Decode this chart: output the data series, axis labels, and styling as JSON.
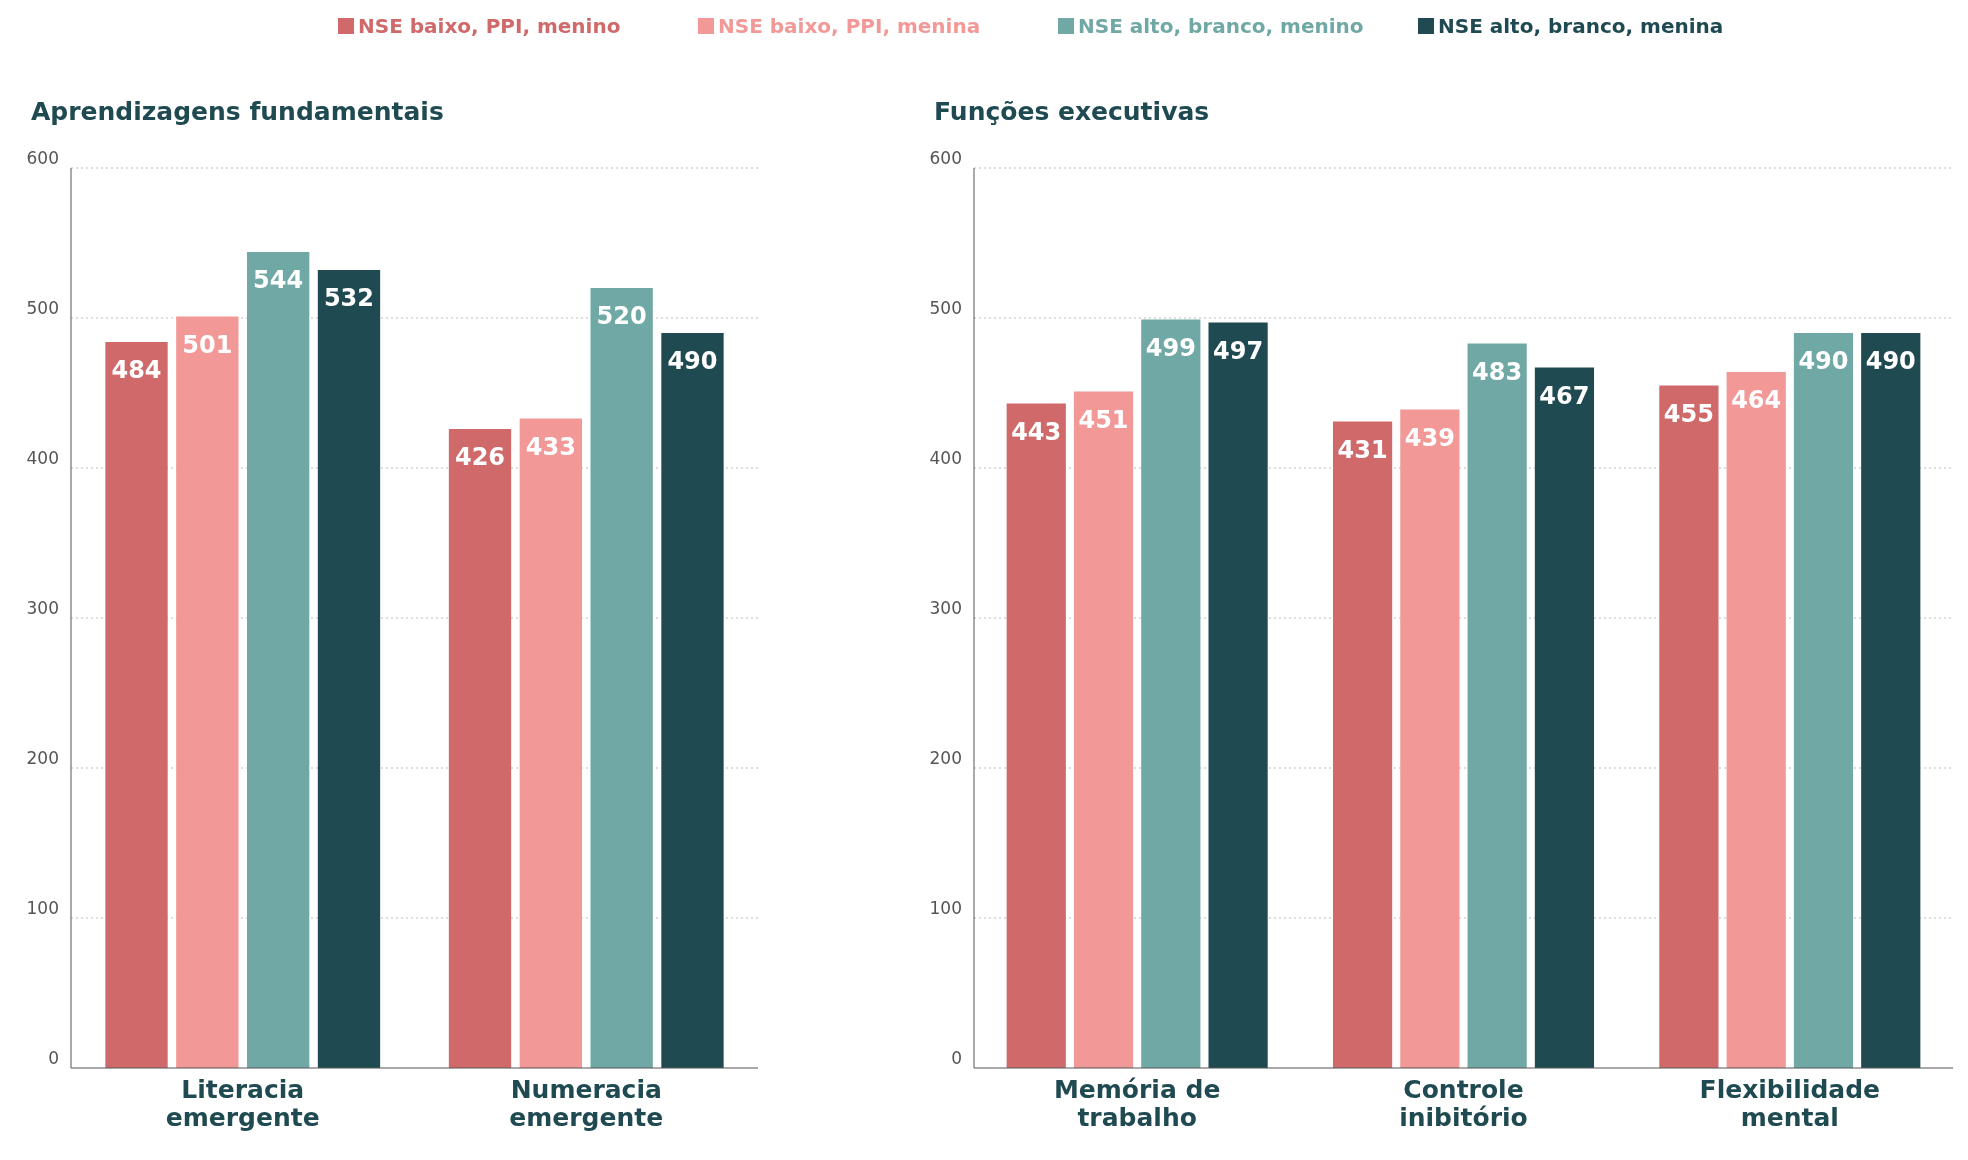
{
  "chart_data": [
    {
      "type": "bar",
      "title": "Aprendizagens fundamentais",
      "categories": [
        "Literacia emergente",
        "Numeracia emergente"
      ],
      "series": [
        {
          "name": "NSE baixo, PPI, menino",
          "color": "#d0696a",
          "values": [
            484,
            426
          ]
        },
        {
          "name": "NSE baixo, PPI, menina",
          "color": "#f29896",
          "values": [
            501,
            433
          ]
        },
        {
          "name": "NSE alto, branco, menino",
          "color": "#70a8a5",
          "values": [
            544,
            520
          ]
        },
        {
          "name": "NSE alto, branco, menina",
          "color": "#1f4a51",
          "values": [
            532,
            490
          ]
        }
      ],
      "ylim": [
        0,
        600
      ],
      "yticks": [
        0,
        100,
        200,
        300,
        400,
        500,
        600
      ],
      "grid": "y",
      "data_labels": true,
      "legend": "top"
    },
    {
      "type": "bar",
      "title": "Funções executivas",
      "categories": [
        "Memória de trabalho",
        "Controle inibitório",
        "Flexibilidade mental"
      ],
      "series": [
        {
          "color": "#d0696a",
          "values": [
            443,
            431,
            455
          ]
        },
        {
          "color": "#f29896",
          "values": [
            451,
            439,
            464
          ]
        },
        {
          "color": "#70a8a5",
          "values": [
            499,
            483,
            490
          ]
        },
        {
          "color": "#1f4a51",
          "values": [
            497,
            467,
            490
          ]
        }
      ],
      "ylim": [
        0,
        600
      ],
      "yticks": [
        0,
        100,
        200,
        300,
        400,
        500,
        600
      ],
      "grid": "y",
      "data_labels": true
    }
  ]
}
